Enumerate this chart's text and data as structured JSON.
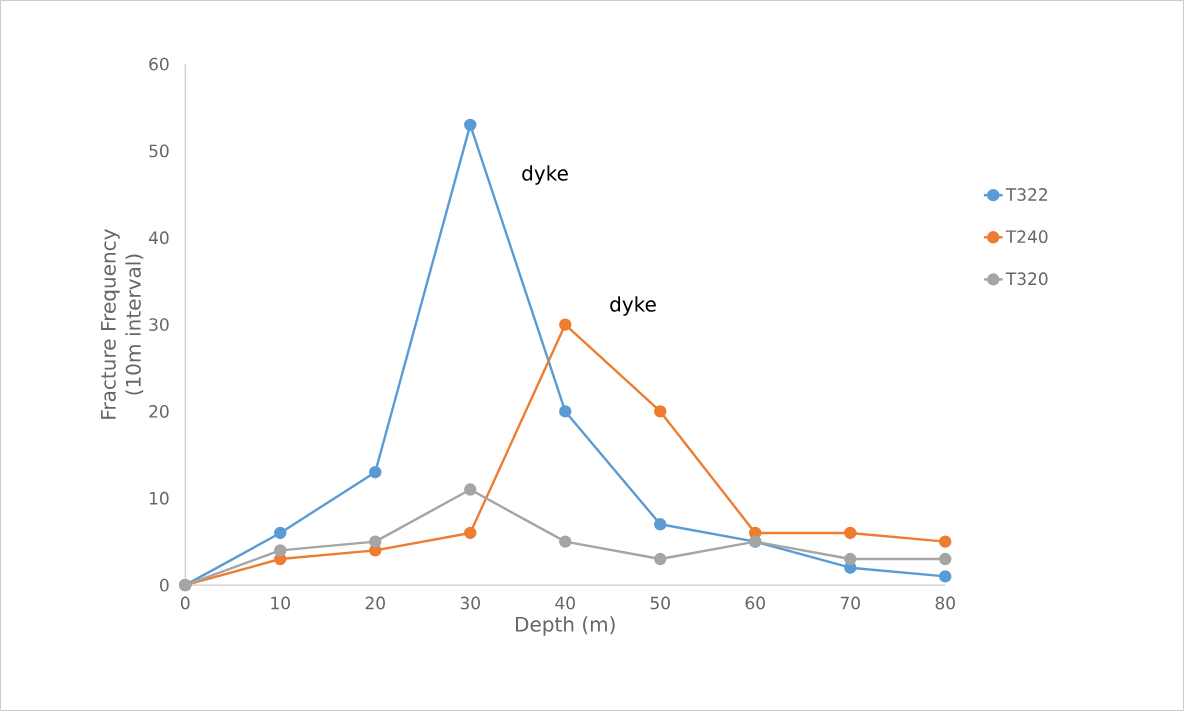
{
  "chart_data": {
    "type": "line",
    "xlabel": "Depth (m)",
    "ylabel": "Fracture Frequency (10m interval)",
    "x": [
      0,
      10,
      20,
      30,
      40,
      50,
      60,
      70,
      80
    ],
    "series": [
      {
        "name": "T322",
        "color": "#5b9bd5",
        "values": [
          0,
          6,
          13,
          53,
          20,
          7,
          5,
          2,
          1
        ]
      },
      {
        "name": "T240",
        "color": "#ed7d31",
        "values": [
          0,
          3,
          4,
          6,
          30,
          20,
          6,
          6,
          5
        ]
      },
      {
        "name": "T320",
        "color": "#a5a5a5",
        "values": [
          0,
          4,
          5,
          11,
          5,
          3,
          5,
          3,
          3
        ]
      }
    ],
    "annotations": [
      "dyke",
      "dyke"
    ],
    "xlim": [
      0,
      80
    ],
    "xticks": [
      0,
      10,
      20,
      30,
      40,
      50,
      60,
      70,
      80
    ],
    "ylim": [
      0,
      60
    ],
    "yticks": [
      0,
      10,
      20,
      30,
      40,
      50,
      60
    ],
    "grid": false,
    "legend": "right",
    "marker": "circle",
    "line_style": "solid"
  }
}
